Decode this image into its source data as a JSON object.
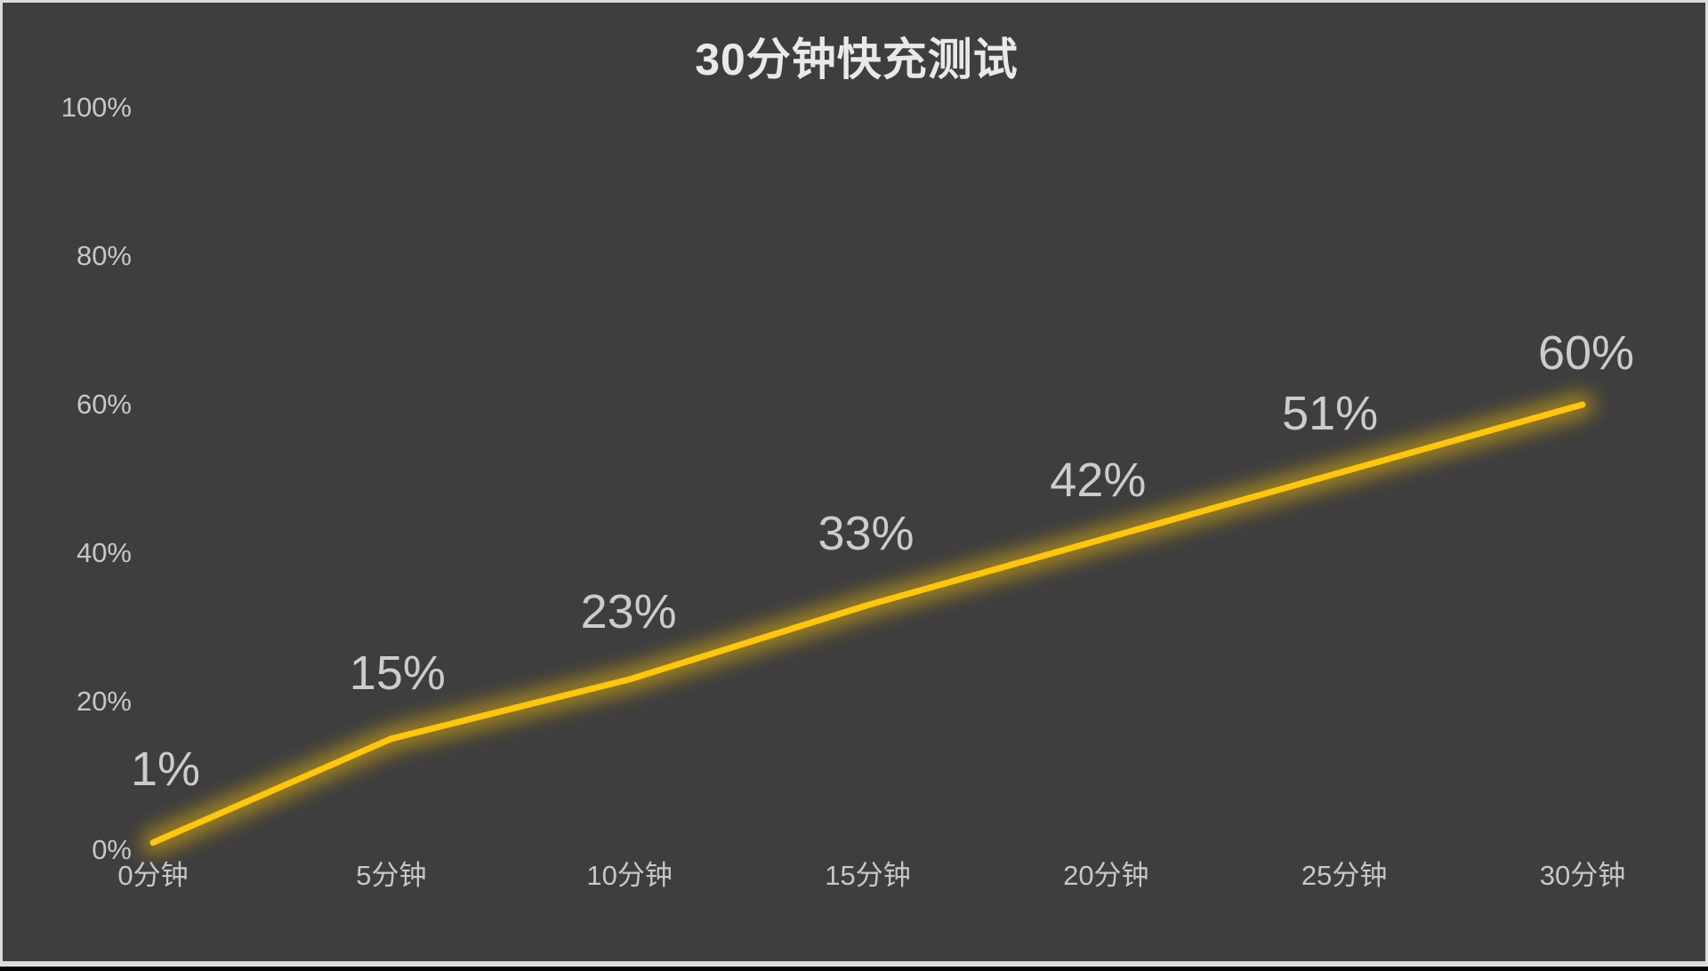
{
  "page": {
    "background_color": "#3E3E3E",
    "frame_border_color": "#DCDCDC",
    "bottom_bar_color": "#050505"
  },
  "chart_data": {
    "type": "line",
    "title": "30分钟快充测试",
    "categories": [
      "0分钟",
      "5分钟",
      "10分钟",
      "15分钟",
      "20分钟",
      "25分钟",
      "30分钟"
    ],
    "x_minutes": [
      0,
      5,
      10,
      15,
      20,
      25,
      30
    ],
    "values": [
      1,
      15,
      23,
      33,
      42,
      51,
      60
    ],
    "data_labels": [
      "1%",
      "15%",
      "23%",
      "33%",
      "42%",
      "51%",
      "60%"
    ],
    "xlabel": "",
    "ylabel": "",
    "ylim": [
      0,
      100
    ],
    "y_ticks": [
      0,
      20,
      40,
      60,
      80,
      100
    ],
    "y_tick_labels": [
      "0%",
      "20%",
      "40%",
      "60%",
      "80%",
      "100%"
    ],
    "grid": false,
    "legend": false,
    "line_color": "#FFC60A",
    "glow_color": "#FFC60A",
    "title_color": "#E9E9E9",
    "axis_text_color": "#C7C7C7",
    "data_label_color": "#CCCCCC"
  }
}
